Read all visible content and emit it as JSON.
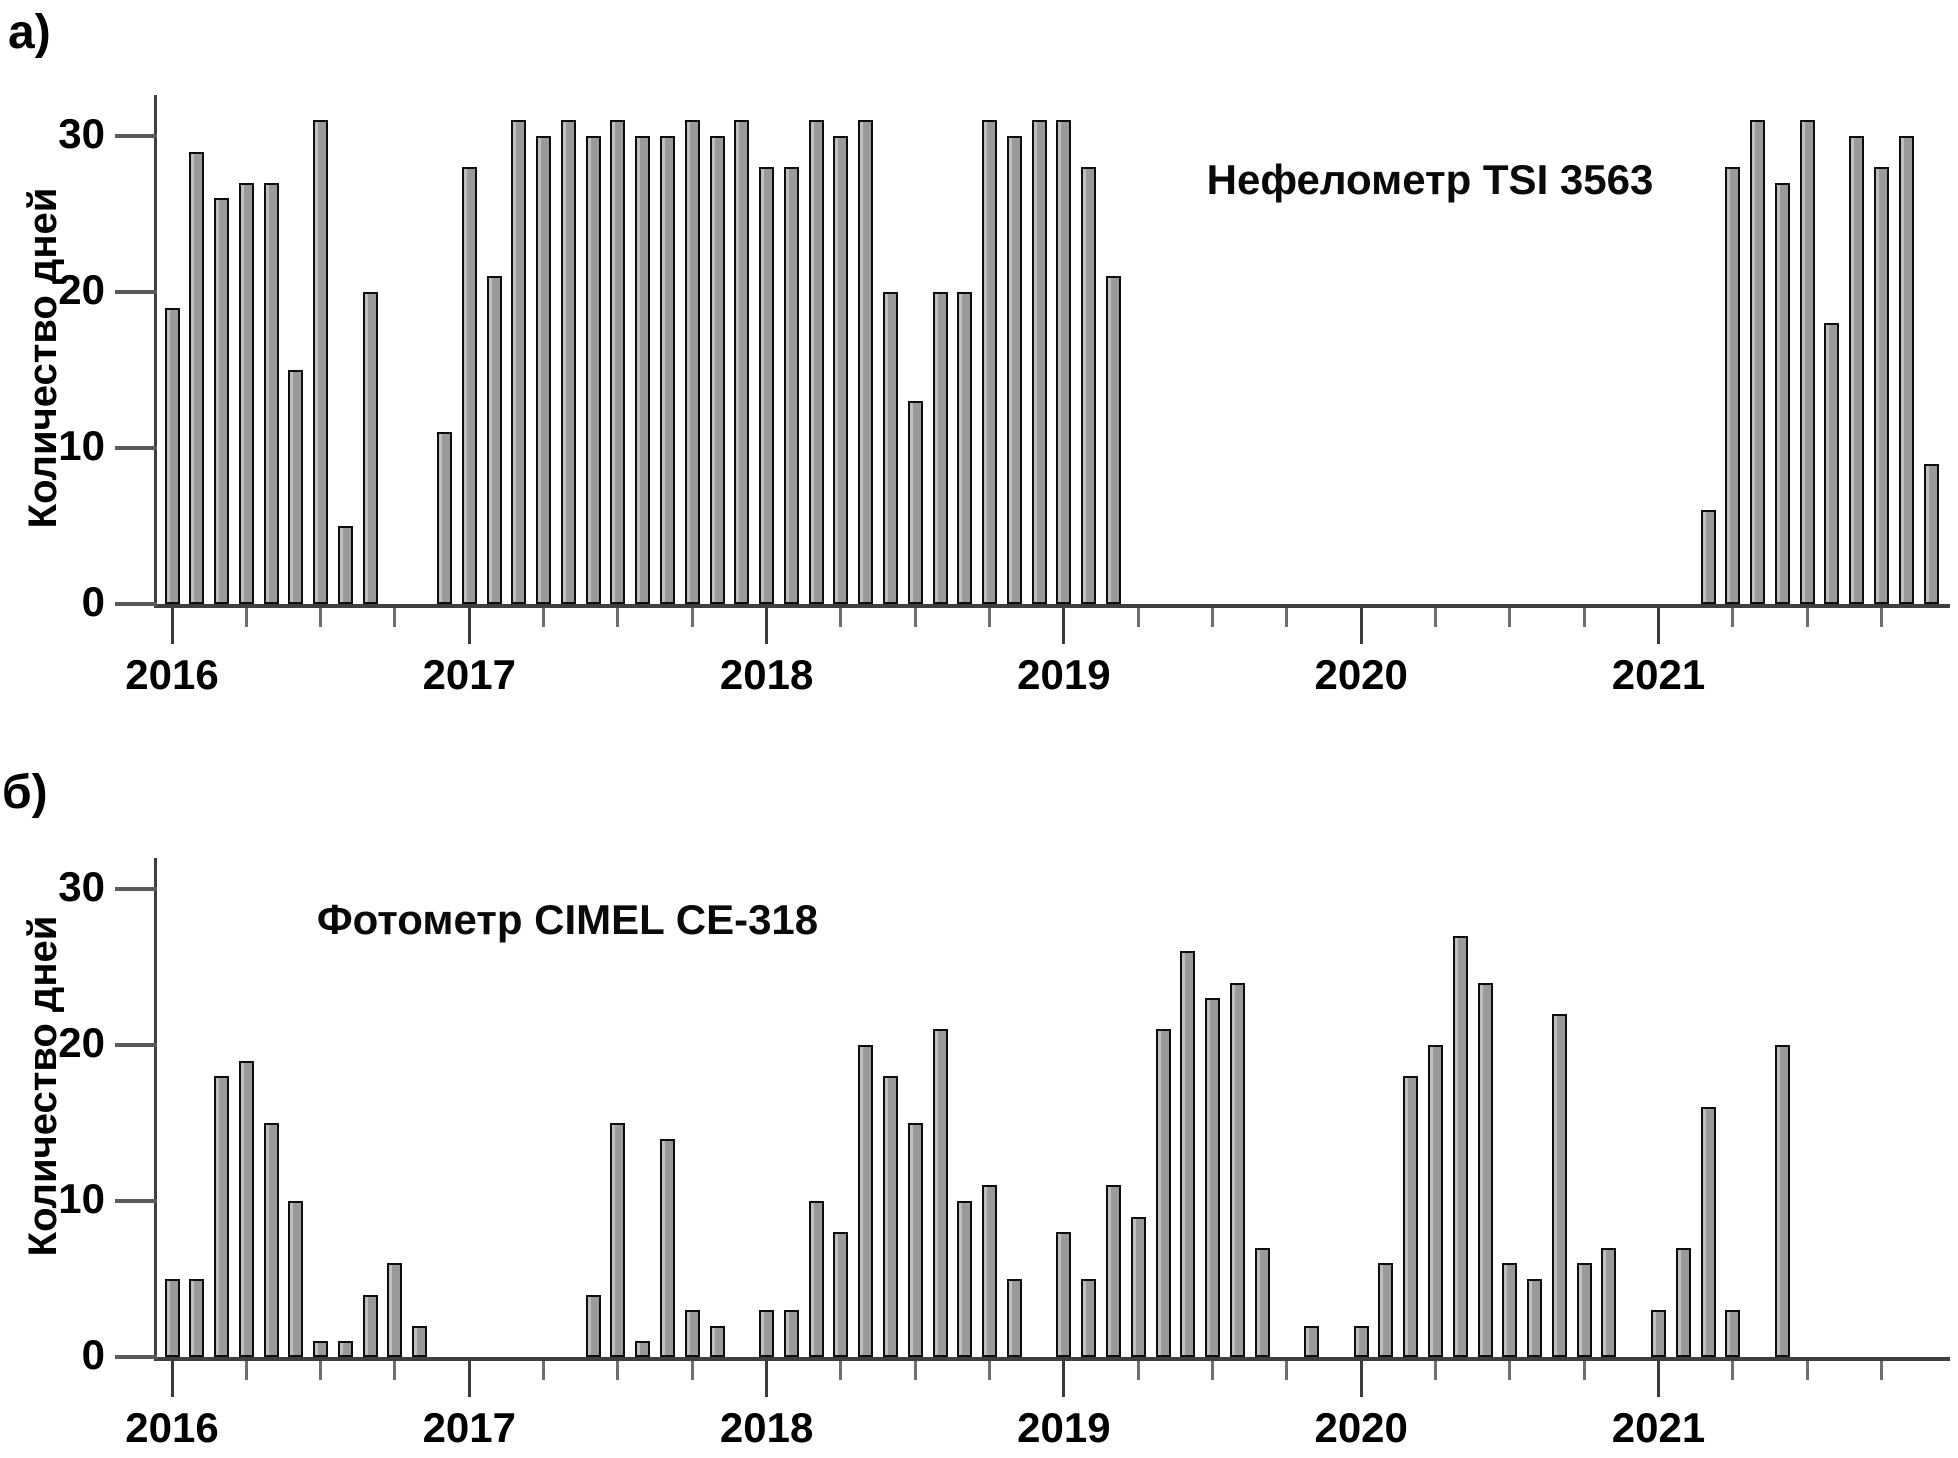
{
  "figure": {
    "background": "#ffffff",
    "panel_a_label": "а)",
    "panel_b_label": "б)"
  },
  "chart_data": [
    {
      "type": "bar",
      "panel_label": "а)",
      "title": "Нефелометр TSI 3563",
      "ylabel": "Количество дней",
      "xlabel": "",
      "ylim": [
        0,
        31
      ],
      "yticks": [
        0,
        10,
        20,
        30
      ],
      "x_unit": "month",
      "grid": false,
      "legend": false,
      "bar_color": "#9a9a9a",
      "bar_border_color": "#0d0d0d",
      "axis_color": "#3f3f3f",
      "years": [
        {
          "label": "2016",
          "values": [
            19,
            29,
            26,
            27,
            27,
            15,
            31,
            5,
            20,
            0,
            0,
            11
          ]
        },
        {
          "label": "2017",
          "values": [
            28,
            21,
            31,
            30,
            31,
            30,
            31,
            30,
            30,
            31,
            30,
            31
          ]
        },
        {
          "label": "2018",
          "values": [
            28,
            28,
            31,
            30,
            31,
            20,
            13,
            20,
            20,
            31,
            30,
            31
          ]
        },
        {
          "label": "2019",
          "values": [
            31,
            28,
            21,
            0,
            0,
            0,
            0,
            0,
            0,
            0,
            0,
            0
          ]
        },
        {
          "label": "2020",
          "values": [
            0,
            0,
            0,
            0,
            0,
            0,
            0,
            0,
            0,
            0,
            0,
            0
          ]
        },
        {
          "label": "2021",
          "values": [
            0,
            0,
            6,
            28,
            31,
            27,
            31,
            18,
            30,
            28,
            30,
            9
          ]
        }
      ]
    },
    {
      "type": "bar",
      "panel_label": "б)",
      "title": "Фотометр CIMEL CE-318",
      "ylabel": "Количество дней",
      "xlabel": "",
      "ylim": [
        0,
        31
      ],
      "yticks": [
        0,
        10,
        20,
        30
      ],
      "x_unit": "month",
      "grid": false,
      "legend": false,
      "bar_color": "#9a9a9a",
      "bar_border_color": "#0d0d0d",
      "axis_color": "#3f3f3f",
      "years": [
        {
          "label": "2016",
          "values": [
            5,
            5,
            18,
            19,
            15,
            10,
            1,
            1,
            4,
            6,
            2,
            0
          ]
        },
        {
          "label": "2017",
          "values": [
            0,
            0,
            0,
            0,
            0,
            4,
            15,
            1,
            14,
            3,
            2,
            0
          ]
        },
        {
          "label": "2018",
          "values": [
            3,
            3,
            10,
            8,
            20,
            18,
            15,
            21,
            10,
            11,
            5,
            0
          ]
        },
        {
          "label": "2019",
          "values": [
            8,
            5,
            11,
            9,
            21,
            26,
            23,
            24,
            7,
            0,
            2,
            0
          ]
        },
        {
          "label": "2020",
          "values": [
            2,
            6,
            18,
            20,
            27,
            24,
            6,
            5,
            22,
            6,
            7,
            0
          ]
        },
        {
          "label": "2021",
          "values": [
            3,
            7,
            16,
            3,
            0,
            20,
            0,
            0,
            0,
            0,
            0,
            0
          ]
        }
      ]
    }
  ]
}
